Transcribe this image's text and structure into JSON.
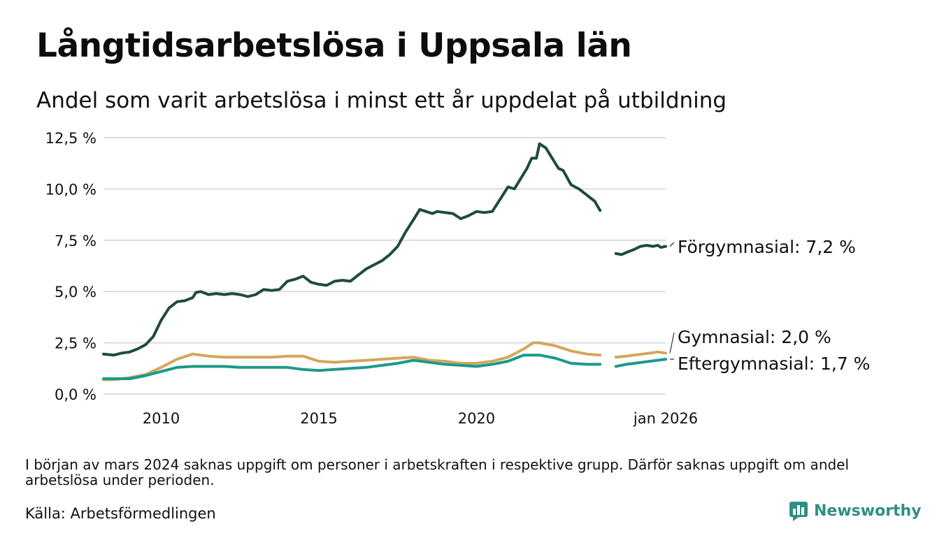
{
  "title": "Långtidsarbetslösa i Uppsala län",
  "subtitle": "Andel som varit arbetslösa i minst ett år uppdelat på utbildning",
  "footnote": "I början av mars 2024 saknas uppgift om personer i arbetskraften i respektive grupp. Därför saknas uppgift om andel arbetslösa under perioden.",
  "source": "Källa: Arbetsförmedlingen",
  "brand": {
    "name": "Newsworthy",
    "logo_icon": "bar-chart-speech-bubble-icon",
    "color": "#2f8f83"
  },
  "colors": {
    "forgymnasial": "#1f4a40",
    "gymnasial": "#d4a65a",
    "eftergymnasial": "#1a9a8a",
    "grid": "#dcdcdc"
  },
  "chart_data": {
    "type": "line",
    "title": "Långtidsarbetslösa i Uppsala län",
    "xlabel": "",
    "ylabel": "",
    "x_unit": "decimal year",
    "xlim": [
      2008.17,
      2026.0
    ],
    "ylim": [
      0,
      12.5
    ],
    "x_ticks": [
      {
        "value": 2010,
        "label": "2010"
      },
      {
        "value": 2015,
        "label": "2015"
      },
      {
        "value": 2020,
        "label": "2020"
      },
      {
        "value": 2026,
        "label": "jan 2026"
      }
    ],
    "y_ticks": [
      {
        "value": 0,
        "label": "0,0 %"
      },
      {
        "value": 2.5,
        "label": "2,5 %"
      },
      {
        "value": 5,
        "label": "5,0 %"
      },
      {
        "value": 7.5,
        "label": "7,5 %"
      },
      {
        "value": 10,
        "label": "10,0 %"
      },
      {
        "value": 12.5,
        "label": "12,5 %"
      }
    ],
    "grid": true,
    "gap": [
      2024.0,
      2024.4
    ],
    "series": [
      {
        "name": "Förgymnasial",
        "end_label": "Förgymnasial: 7,2 %",
        "color_key": "forgymnasial",
        "points": [
          [
            2008.17,
            1.95
          ],
          [
            2008.5,
            1.9
          ],
          [
            2008.75,
            2.0
          ],
          [
            2009.0,
            2.05
          ],
          [
            2009.25,
            2.2
          ],
          [
            2009.5,
            2.4
          ],
          [
            2009.75,
            2.8
          ],
          [
            2010.0,
            3.6
          ],
          [
            2010.25,
            4.2
          ],
          [
            2010.5,
            4.5
          ],
          [
            2010.75,
            4.55
          ],
          [
            2011.0,
            4.7
          ],
          [
            2011.1,
            4.95
          ],
          [
            2011.25,
            5.0
          ],
          [
            2011.5,
            4.85
          ],
          [
            2011.75,
            4.9
          ],
          [
            2012.0,
            4.85
          ],
          [
            2012.25,
            4.9
          ],
          [
            2012.5,
            4.85
          ],
          [
            2012.75,
            4.75
          ],
          [
            2013.0,
            4.85
          ],
          [
            2013.25,
            5.1
          ],
          [
            2013.5,
            5.05
          ],
          [
            2013.75,
            5.1
          ],
          [
            2014.0,
            5.5
          ],
          [
            2014.25,
            5.6
          ],
          [
            2014.5,
            5.75
          ],
          [
            2014.75,
            5.45
          ],
          [
            2015.0,
            5.35
          ],
          [
            2015.25,
            5.3
          ],
          [
            2015.5,
            5.5
          ],
          [
            2015.75,
            5.55
          ],
          [
            2016.0,
            5.5
          ],
          [
            2016.25,
            5.8
          ],
          [
            2016.5,
            6.1
          ],
          [
            2016.75,
            6.3
          ],
          [
            2017.0,
            6.5
          ],
          [
            2017.25,
            6.8
          ],
          [
            2017.5,
            7.2
          ],
          [
            2017.75,
            7.9
          ],
          [
            2018.0,
            8.5
          ],
          [
            2018.2,
            9.0
          ],
          [
            2018.4,
            8.9
          ],
          [
            2018.6,
            8.8
          ],
          [
            2018.75,
            8.9
          ],
          [
            2019.0,
            8.85
          ],
          [
            2019.25,
            8.8
          ],
          [
            2019.5,
            8.55
          ],
          [
            2019.75,
            8.7
          ],
          [
            2020.0,
            8.9
          ],
          [
            2020.25,
            8.85
          ],
          [
            2020.5,
            8.9
          ],
          [
            2020.75,
            9.5
          ],
          [
            2021.0,
            10.1
          ],
          [
            2021.2,
            10.0
          ],
          [
            2021.4,
            10.5
          ],
          [
            2021.6,
            11.0
          ],
          [
            2021.75,
            11.5
          ],
          [
            2021.9,
            11.5
          ],
          [
            2022.0,
            12.2
          ],
          [
            2022.2,
            12.0
          ],
          [
            2022.4,
            11.5
          ],
          [
            2022.6,
            11.0
          ],
          [
            2022.75,
            10.9
          ],
          [
            2023.0,
            10.2
          ],
          [
            2023.25,
            10.0
          ],
          [
            2023.5,
            9.7
          ],
          [
            2023.75,
            9.4
          ],
          [
            2023.92,
            8.95
          ]
        ],
        "points_after_gap": [
          [
            2024.42,
            6.85
          ],
          [
            2024.6,
            6.8
          ],
          [
            2024.75,
            6.9
          ],
          [
            2025.0,
            7.05
          ],
          [
            2025.2,
            7.2
          ],
          [
            2025.4,
            7.25
          ],
          [
            2025.6,
            7.2
          ],
          [
            2025.75,
            7.25
          ],
          [
            2025.85,
            7.15
          ],
          [
            2026.0,
            7.2
          ]
        ]
      },
      {
        "name": "Gymnasial",
        "end_label": "Gymnasial: 2,0 %",
        "color_key": "gymnasial",
        "points": [
          [
            2008.17,
            0.7
          ],
          [
            2008.5,
            0.7
          ],
          [
            2009.0,
            0.8
          ],
          [
            2009.5,
            0.95
          ],
          [
            2010.0,
            1.3
          ],
          [
            2010.5,
            1.7
          ],
          [
            2011.0,
            1.95
          ],
          [
            2011.5,
            1.85
          ],
          [
            2012.0,
            1.8
          ],
          [
            2012.5,
            1.8
          ],
          [
            2013.0,
            1.8
          ],
          [
            2013.5,
            1.8
          ],
          [
            2014.0,
            1.85
          ],
          [
            2014.5,
            1.85
          ],
          [
            2015.0,
            1.6
          ],
          [
            2015.5,
            1.55
          ],
          [
            2016.0,
            1.6
          ],
          [
            2016.5,
            1.65
          ],
          [
            2017.0,
            1.7
          ],
          [
            2017.5,
            1.75
          ],
          [
            2018.0,
            1.8
          ],
          [
            2018.5,
            1.65
          ],
          [
            2019.0,
            1.6
          ],
          [
            2019.5,
            1.5
          ],
          [
            2020.0,
            1.5
          ],
          [
            2020.5,
            1.6
          ],
          [
            2021.0,
            1.8
          ],
          [
            2021.5,
            2.2
          ],
          [
            2021.8,
            2.5
          ],
          [
            2022.0,
            2.5
          ],
          [
            2022.5,
            2.35
          ],
          [
            2023.0,
            2.1
          ],
          [
            2023.5,
            1.95
          ],
          [
            2023.92,
            1.9
          ]
        ],
        "points_after_gap": [
          [
            2024.42,
            1.8
          ],
          [
            2024.75,
            1.85
          ],
          [
            2025.0,
            1.9
          ],
          [
            2025.5,
            2.0
          ],
          [
            2025.75,
            2.05
          ],
          [
            2026.0,
            2.0
          ]
        ]
      },
      {
        "name": "Eftergymnasial",
        "end_label": "Eftergymnasial: 1,7 %",
        "color_key": "eftergymnasial",
        "points": [
          [
            2008.17,
            0.75
          ],
          [
            2008.5,
            0.75
          ],
          [
            2009.0,
            0.75
          ],
          [
            2009.5,
            0.9
          ],
          [
            2010.0,
            1.1
          ],
          [
            2010.5,
            1.3
          ],
          [
            2011.0,
            1.35
          ],
          [
            2011.5,
            1.35
          ],
          [
            2012.0,
            1.35
          ],
          [
            2012.5,
            1.3
          ],
          [
            2013.0,
            1.3
          ],
          [
            2013.5,
            1.3
          ],
          [
            2014.0,
            1.3
          ],
          [
            2014.5,
            1.2
          ],
          [
            2015.0,
            1.15
          ],
          [
            2015.5,
            1.2
          ],
          [
            2016.0,
            1.25
          ],
          [
            2016.5,
            1.3
          ],
          [
            2017.0,
            1.4
          ],
          [
            2017.5,
            1.5
          ],
          [
            2018.0,
            1.65
          ],
          [
            2018.5,
            1.55
          ],
          [
            2019.0,
            1.45
          ],
          [
            2019.5,
            1.4
          ],
          [
            2020.0,
            1.35
          ],
          [
            2020.5,
            1.45
          ],
          [
            2021.0,
            1.6
          ],
          [
            2021.5,
            1.9
          ],
          [
            2022.0,
            1.9
          ],
          [
            2022.5,
            1.75
          ],
          [
            2023.0,
            1.5
          ],
          [
            2023.5,
            1.45
          ],
          [
            2023.92,
            1.45
          ]
        ],
        "points_after_gap": [
          [
            2024.42,
            1.35
          ],
          [
            2024.75,
            1.45
          ],
          [
            2025.0,
            1.5
          ],
          [
            2025.5,
            1.6
          ],
          [
            2025.75,
            1.65
          ],
          [
            2026.0,
            1.7
          ]
        ]
      }
    ]
  }
}
